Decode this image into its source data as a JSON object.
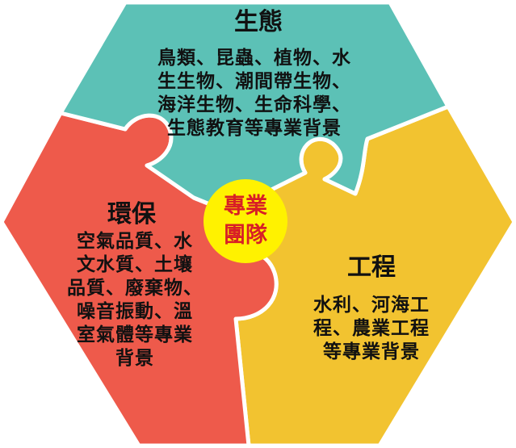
{
  "pieces": {
    "ecology": {
      "title": "生態",
      "lines": [
        "鳥類、昆蟲、植物、水",
        "生生物、潮間帶生物、",
        "海洋生物、生命科學、",
        "生態教育等專業背景"
      ],
      "color": "#5cc1b6"
    },
    "environment": {
      "title": "環保",
      "lines": [
        "空氣品質、水",
        "文水質、土壤",
        "品質、廢棄物、",
        "噪音振動、溫",
        "室氣體等專業",
        "背景"
      ],
      "color": "#ee5a4b"
    },
    "engineering": {
      "title": "工程",
      "lines": [
        "水利、河海工",
        "程、農業工程",
        "等專業背景"
      ],
      "color": "#f2c330"
    }
  },
  "center": {
    "line1": "專業",
    "line2": "團隊",
    "fill": "#fff200",
    "text_color": "#d81f26"
  }
}
